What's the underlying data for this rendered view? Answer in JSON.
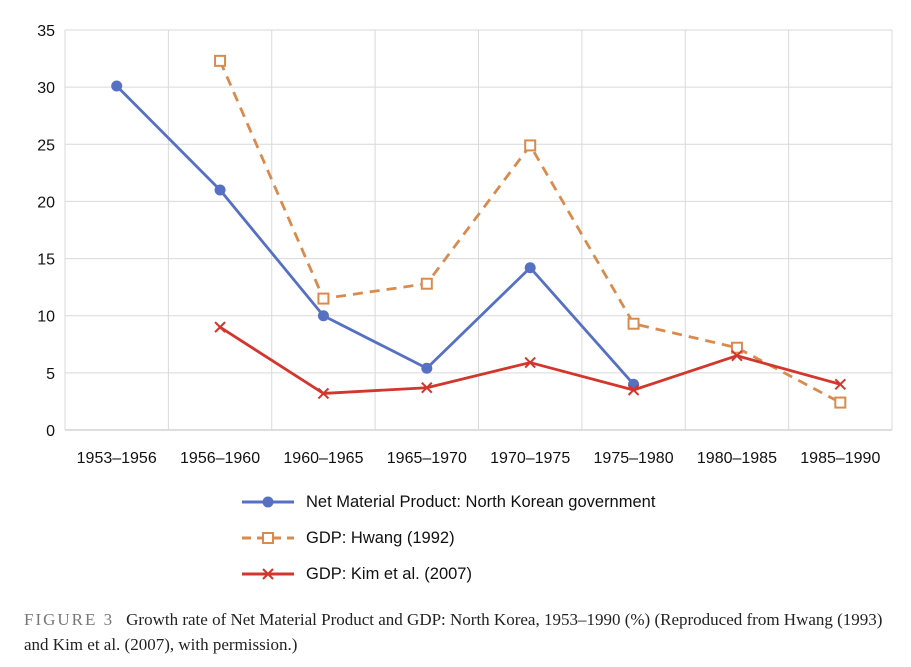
{
  "chart_data": {
    "type": "line",
    "categories": [
      "1953–1956",
      "1956–1960",
      "1960–1965",
      "1965–1970",
      "1970–1975",
      "1975–1980",
      "1980–1985",
      "1985–1990"
    ],
    "ylim": [
      0,
      35
    ],
    "yticks": [
      0,
      5,
      10,
      15,
      20,
      25,
      30,
      35
    ],
    "grid": true,
    "series": [
      {
        "name": "Net Material Product: North Korean government",
        "color": "#5670c4",
        "dash": "solid",
        "marker": "circle",
        "values": [
          30.1,
          21.0,
          10.0,
          5.4,
          14.2,
          4.0,
          null,
          null
        ]
      },
      {
        "name": "GDP: Hwang (1992)",
        "color": "#d98b4e",
        "dash": "dashed",
        "marker": "square",
        "values": [
          null,
          32.3,
          11.5,
          12.8,
          24.9,
          9.3,
          7.2,
          2.4
        ]
      },
      {
        "name": "GDP: Kim et al. (2007)",
        "color": "#d2362d",
        "dash": "solid",
        "marker": "x",
        "values": [
          null,
          9.0,
          3.2,
          3.7,
          5.9,
          3.5,
          6.5,
          4.0
        ]
      }
    ]
  },
  "caption": {
    "label": "FIGURE 3",
    "text": "Growth rate of Net Material Product and GDP: North Korea, 1953–1990 (%) (Reproduced from Hwang (1993) and Kim et al. (2007), with permission.)"
  }
}
